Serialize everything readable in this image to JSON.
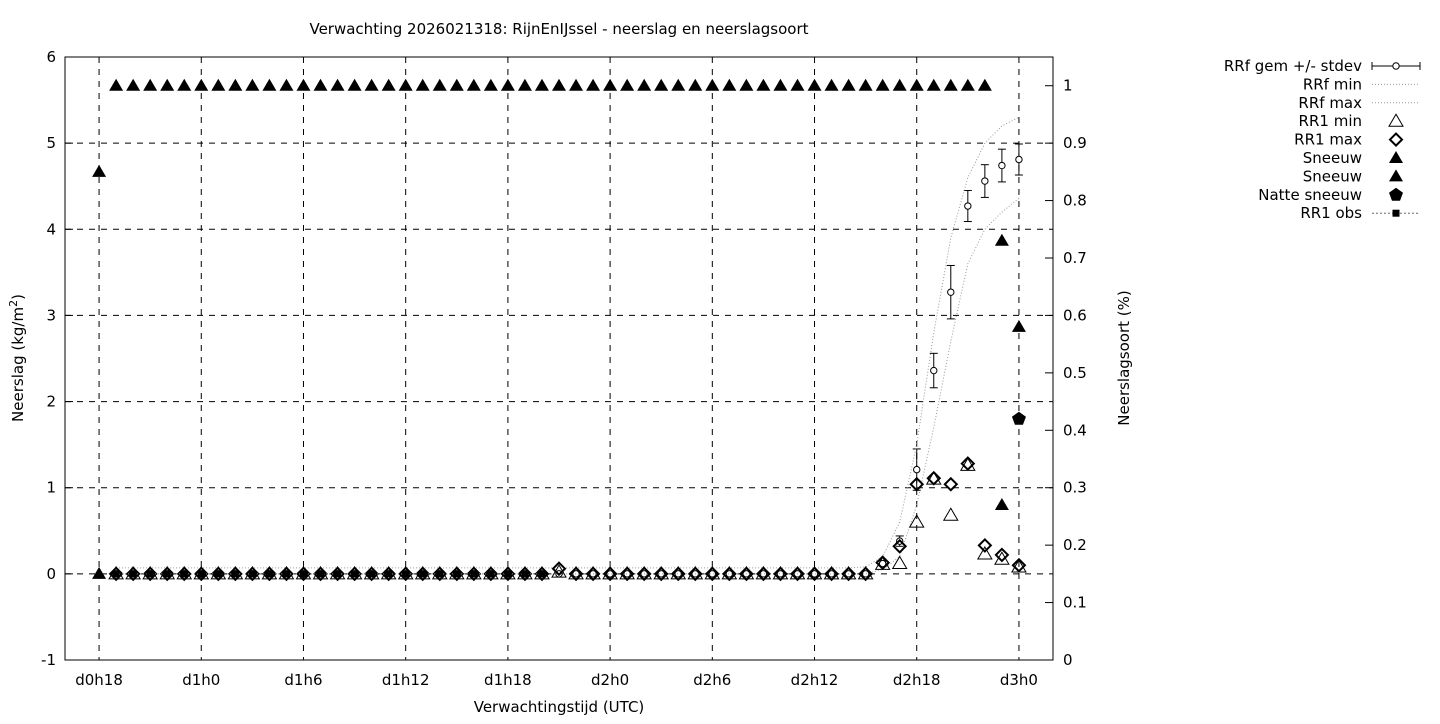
{
  "chart_data": {
    "type": "scatter",
    "title": "Verwachting 2026021318: RijnEnIJssel - neerslag en neerslagsoort",
    "xlabel": "Verwachtingstijd (UTC)",
    "ylabel": "Neerslag (kg/m",
    "ylabel_sup": "2",
    "ylabel_end": ")",
    "y2label": "Neerslagsoort (%)",
    "ylim": [
      -1,
      6
    ],
    "y2lim": [
      0,
      1.05
    ],
    "xlim": [
      "d0h16",
      "d3h2"
    ],
    "grid": true,
    "legend_placement": "outside-right",
    "yticks": [
      "-1",
      "0",
      "1",
      "2",
      "3",
      "4",
      "5",
      "6"
    ],
    "y2ticks": [
      "0",
      "0.1",
      "0.2",
      "0.3",
      "0.4",
      "0.5",
      "0.6",
      "0.7",
      "0.8",
      "0.9",
      "1"
    ],
    "xticks": [
      "d0h18",
      "d1h0",
      "d1h6",
      "d1h12",
      "d1h18",
      "d2h0",
      "d2h6",
      "d2h12",
      "d2h18",
      "d3h0"
    ],
    "x_step_hours": 1,
    "series": [
      {
        "name": "RRf gem +/- stdev",
        "axis": "left",
        "marker": "open-circle-errorbar",
        "x_start": "d0h19",
        "values": [
          0,
          0,
          0,
          0,
          0,
          0,
          0,
          0,
          0,
          0,
          0,
          0,
          0,
          0,
          0,
          0,
          0,
          0,
          0,
          0,
          0,
          0,
          0,
          0,
          0,
          0,
          0,
          0,
          0,
          0,
          0,
          0,
          0,
          0,
          0,
          0,
          0,
          0,
          0,
          0,
          0,
          0,
          0,
          0,
          0,
          0.12,
          0.38,
          1.21,
          2.36,
          3.27,
          4.27,
          4.56,
          4.74,
          4.81
        ],
        "stdev": [
          0,
          0,
          0,
          0,
          0,
          0,
          0,
          0,
          0,
          0,
          0,
          0,
          0,
          0,
          0,
          0,
          0,
          0,
          0,
          0,
          0,
          0,
          0,
          0,
          0,
          0,
          0,
          0,
          0,
          0,
          0,
          0,
          0,
          0,
          0,
          0,
          0,
          0,
          0,
          0,
          0,
          0,
          0,
          0,
          0,
          0.03,
          0.06,
          0.24,
          0.2,
          0.31,
          0.18,
          0.19,
          0.19,
          0.18
        ]
      },
      {
        "name": "RRf min",
        "axis": "left",
        "marker": "dotted-line",
        "x_start": "d0h19",
        "values": [
          0,
          0,
          0,
          0,
          0,
          0,
          0,
          0,
          0,
          0,
          0,
          0,
          0,
          0,
          0,
          0,
          0,
          0,
          0,
          0,
          0,
          0,
          0,
          0,
          0,
          0,
          0,
          0,
          0,
          0,
          0,
          0,
          0,
          0,
          0,
          0,
          0,
          0,
          0,
          0,
          0,
          0,
          0,
          0,
          0,
          0.05,
          0.2,
          0.8,
          1.7,
          2.7,
          3.6,
          4.0,
          4.2,
          4.36
        ]
      },
      {
        "name": "RRf max",
        "axis": "left",
        "marker": "dotted-line",
        "x_start": "d0h19",
        "values": [
          0.07,
          0.07,
          0.07,
          0.07,
          0.07,
          0.07,
          0.07,
          0.07,
          0.07,
          0.07,
          0.07,
          0.07,
          0.07,
          0.07,
          0.07,
          0.07,
          0.07,
          0.07,
          0.07,
          0.07,
          0.07,
          0.07,
          0.07,
          0.07,
          0.07,
          0.07,
          0.07,
          0.07,
          0.07,
          0.07,
          0.07,
          0.07,
          0.07,
          0.07,
          0.07,
          0.07,
          0.07,
          0.07,
          0.07,
          0.07,
          0.07,
          0.07,
          0.07,
          0.07,
          0.08,
          0.2,
          0.6,
          1.5,
          2.8,
          3.9,
          4.6,
          5.0,
          5.2,
          5.3
        ]
      },
      {
        "name": "RR1 min",
        "axis": "left",
        "marker": "open-triangle",
        "x_start": "d0h19",
        "values": [
          0,
          0,
          0,
          0,
          0,
          0,
          0,
          0,
          0,
          0,
          0,
          0,
          0,
          0,
          0,
          0,
          0,
          0,
          0,
          0,
          0,
          0,
          0,
          0,
          0,
          0,
          0.02,
          0,
          0,
          0,
          0,
          0,
          0,
          0,
          0,
          0,
          0,
          0,
          0,
          0,
          0,
          0,
          0,
          0,
          0,
          0.11,
          0.12,
          0.6,
          1.1,
          0.68,
          1.26,
          0.23,
          0.17,
          0.08
        ]
      },
      {
        "name": "RR1 max",
        "axis": "left",
        "marker": "open-diamond",
        "x_start": "d0h19",
        "values": [
          0,
          0,
          0,
          0,
          0,
          0,
          0,
          0,
          0,
          0,
          0,
          0,
          0,
          0,
          0,
          0,
          0,
          0,
          0,
          0,
          0,
          0,
          0,
          0,
          0,
          0,
          0.06,
          0,
          0,
          0,
          0,
          0,
          0,
          0,
          0,
          0,
          0,
          0,
          0,
          0,
          0,
          0,
          0,
          0,
          0,
          0.13,
          0.32,
          1.04,
          1.11,
          1.04,
          1.28,
          0.33,
          0.22,
          0.1
        ]
      },
      {
        "name": "Sneeuw",
        "axis": "right",
        "marker": "filled-triangle",
        "x_start": "d0h18",
        "values": [
          0.85,
          1,
          1,
          1,
          1,
          1,
          1,
          1,
          1,
          1,
          1,
          1,
          1,
          1,
          1,
          1,
          1,
          1,
          1,
          1,
          1,
          1,
          1,
          1,
          1,
          1,
          1,
          1,
          1,
          1,
          1,
          1,
          1,
          1,
          1,
          1,
          1,
          1,
          1,
          1,
          1,
          1,
          1,
          1,
          1,
          1,
          1,
          1,
          1,
          1,
          1,
          1,
          1,
          0.73,
          0.58
        ]
      },
      {
        "name": "Sneeuw",
        "axis": "right",
        "marker": "filled-triangle",
        "points": [
          [
            "d0h18",
            0.15
          ],
          [
            "d2h23",
            0.27
          ]
        ]
      },
      {
        "name": "Natte sneeuw",
        "axis": "right",
        "marker": "filled-pentagon",
        "points": [
          [
            "d3h0",
            0.42
          ]
        ]
      },
      {
        "name": "RR1 obs",
        "axis": "left",
        "marker": "filled-square-dotted",
        "x_start": "d0h19",
        "values": [
          0,
          0,
          0,
          0,
          0,
          0,
          0,
          0,
          0,
          0,
          0,
          0,
          0,
          0,
          0,
          0,
          0,
          0,
          0,
          0,
          0,
          0,
          0,
          0,
          0,
          0
        ]
      }
    ]
  }
}
